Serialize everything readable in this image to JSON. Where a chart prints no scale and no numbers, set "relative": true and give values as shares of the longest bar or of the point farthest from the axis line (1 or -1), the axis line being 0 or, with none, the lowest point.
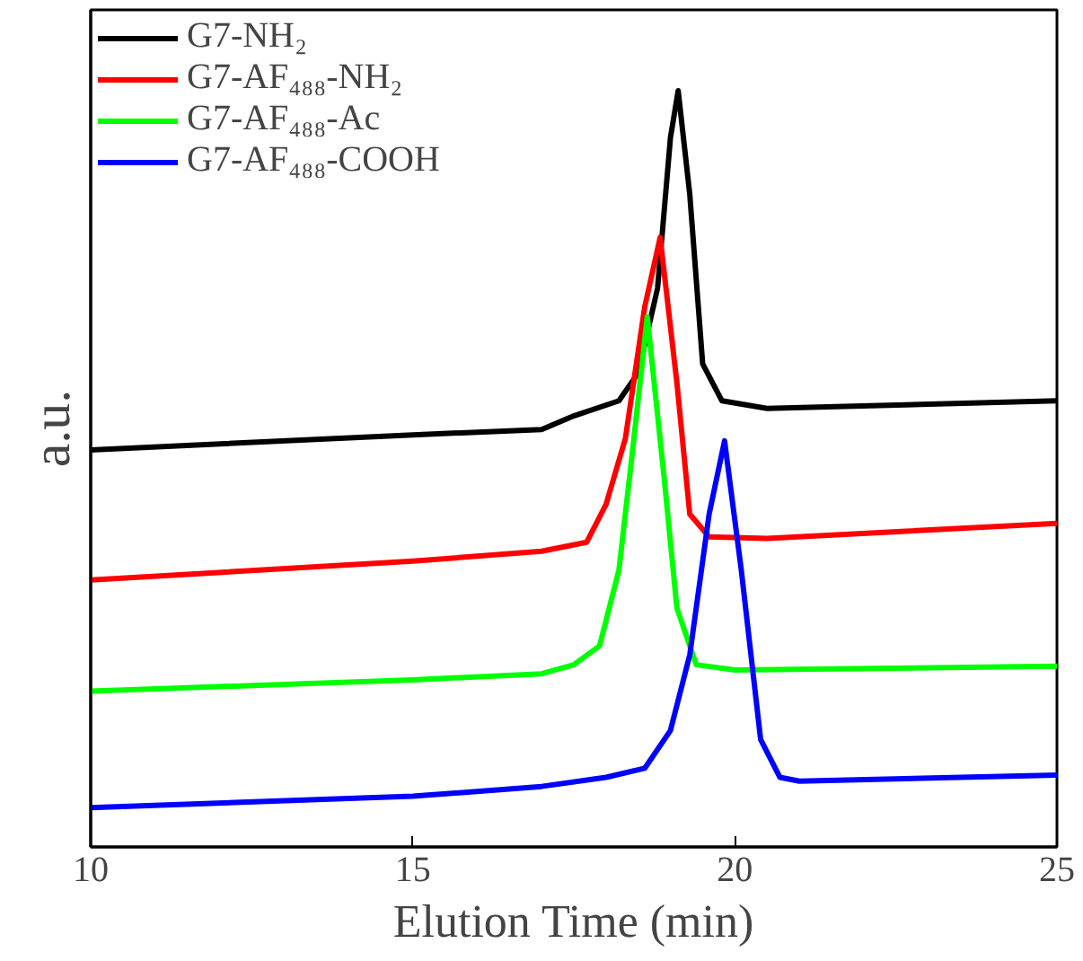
{
  "chart_data": {
    "type": "line",
    "xlabel": "Elution Time (min)",
    "ylabel": "a.u.",
    "relative": true,
    "xlim": [
      10,
      25
    ],
    "xticks": [
      10,
      15,
      20,
      25
    ],
    "tick_labels": "x",
    "legend": "top left",
    "grid": false,
    "series": [
      {
        "name": "G7-NH₂",
        "color": "#000000",
        "x": [
          10,
          15,
          17,
          17.5,
          18.2,
          18.5,
          18.8,
          19.0,
          19.12,
          19.3,
          19.5,
          19.8,
          20.5,
          25
        ],
        "values": [
          0.525,
          0.545,
          0.552,
          0.57,
          0.59,
          0.627,
          0.739,
          0.938,
          1.0,
          0.863,
          0.639,
          0.59,
          0.58,
          0.59
        ]
      },
      {
        "name": "G7-AF₄₈₈-NH₂",
        "color": "#ff0000",
        "x": [
          10,
          15,
          17,
          17.7,
          18.0,
          18.3,
          18.6,
          18.84,
          19.1,
          19.3,
          19.6,
          20.5,
          25
        ],
        "values": [
          0.353,
          0.378,
          0.391,
          0.403,
          0.453,
          0.54,
          0.714,
          0.806,
          0.614,
          0.44,
          0.41,
          0.408,
          0.428
        ]
      },
      {
        "name": "G7-AF₄₈₈-Ac",
        "color": "#00ff00",
        "x": [
          10,
          15,
          17,
          17.5,
          17.9,
          18.2,
          18.4,
          18.64,
          18.9,
          19.1,
          19.4,
          20,
          25
        ],
        "values": [
          0.206,
          0.221,
          0.229,
          0.241,
          0.266,
          0.366,
          0.515,
          0.701,
          0.49,
          0.316,
          0.241,
          0.234,
          0.239
        ]
      },
      {
        "name": "G7-AF₄₈₈-COOH",
        "color": "#0000ff",
        "x": [
          10,
          15,
          17,
          18,
          18.6,
          19.0,
          19.3,
          19.6,
          19.84,
          20.1,
          20.4,
          20.7,
          21,
          25
        ],
        "values": [
          0.052,
          0.067,
          0.08,
          0.092,
          0.104,
          0.154,
          0.254,
          0.44,
          0.537,
          0.366,
          0.142,
          0.092,
          0.087,
          0.095
        ]
      }
    ]
  }
}
